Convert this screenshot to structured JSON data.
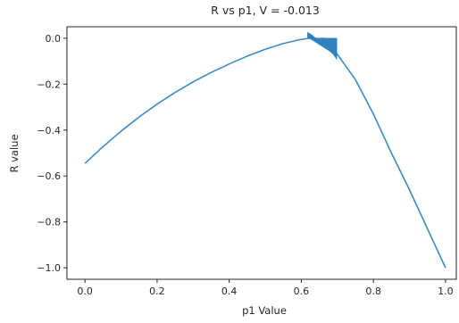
{
  "chart_data": {
    "type": "line",
    "title": "R vs p1, V = -0.013",
    "xlabel": "p1 Value",
    "ylabel": "R value",
    "xlim": [
      -0.05,
      1.03
    ],
    "ylim": [
      -1.05,
      0.05
    ],
    "xticks": [
      0.0,
      0.2,
      0.4,
      0.6,
      0.8,
      1.0
    ],
    "xtick_labels": [
      "0.0",
      "0.2",
      "0.4",
      "0.6",
      "0.8",
      "1.0"
    ],
    "yticks": [
      0.0,
      -0.2,
      -0.4,
      -0.6,
      -0.8,
      -1.0
    ],
    "ytick_labels": [
      "0.0",
      "−0.2",
      "−0.4",
      "−0.6",
      "−0.8",
      "−1.0"
    ],
    "grid": false,
    "line_color": "#3a8cc6",
    "series": [
      {
        "x": [
          0.0,
          0.05,
          0.1,
          0.15,
          0.2,
          0.25,
          0.3,
          0.35,
          0.4,
          0.45,
          0.5,
          0.55,
          0.6,
          0.62,
          0.65,
          0.7,
          0.75,
          0.8,
          0.85,
          0.9,
          0.95,
          1.0
        ],
        "values": [
          -0.545,
          -0.472,
          -0.405,
          -0.343,
          -0.287,
          -0.236,
          -0.19,
          -0.149,
          -0.112,
          -0.078,
          -0.048,
          -0.023,
          -0.005,
          0.0,
          -0.005,
          -0.07,
          -0.18,
          -0.33,
          -0.5,
          -0.66,
          -0.83,
          -1.0
        ]
      }
    ],
    "oscillation_band": {
      "x_start": 0.618,
      "x_end": 0.698,
      "upper": [
        0.025,
        0.015,
        0.002,
        0.0,
        0.001,
        0.0,
        0.0,
        0.0,
        0.0
      ],
      "lower": [
        0.0,
        -0.005,
        -0.015,
        -0.025,
        -0.035,
        -0.045,
        -0.055,
        -0.068,
        -0.09
      ]
    }
  }
}
